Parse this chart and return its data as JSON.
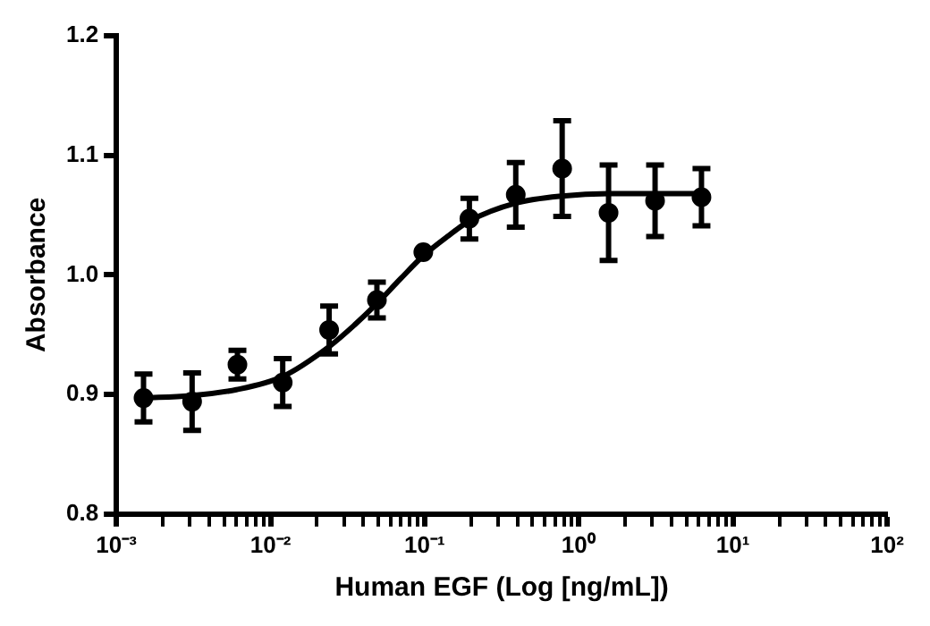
{
  "chart_data": {
    "type": "scatter",
    "xlabel": "Human EGF (Log [ng/mL])",
    "ylabel": "Absorbance",
    "log": "x",
    "grid": false,
    "legend": false,
    "marker": "circle",
    "xlim": [
      0.001,
      100
    ],
    "xticks": [
      {
        "value": 0.001,
        "label": "10⁻³"
      },
      {
        "value": 0.002,
        "label": null
      },
      {
        "value": 0.003,
        "label": null
      },
      {
        "value": 0.004,
        "label": null
      },
      {
        "value": 0.005,
        "label": null
      },
      {
        "value": 0.006,
        "label": null
      },
      {
        "value": 0.007,
        "label": null
      },
      {
        "value": 0.008,
        "label": null
      },
      {
        "value": 0.009,
        "label": null
      },
      {
        "value": 0.01,
        "label": "10⁻²"
      },
      {
        "value": 0.02,
        "label": null
      },
      {
        "value": 0.03,
        "label": null
      },
      {
        "value": 0.04,
        "label": null
      },
      {
        "value": 0.05,
        "label": null
      },
      {
        "value": 0.06,
        "label": null
      },
      {
        "value": 0.07,
        "label": null
      },
      {
        "value": 0.08,
        "label": null
      },
      {
        "value": 0.09,
        "label": null
      },
      {
        "value": 0.1,
        "label": "10⁻¹"
      },
      {
        "value": 0.2,
        "label": null
      },
      {
        "value": 0.3,
        "label": null
      },
      {
        "value": 0.4,
        "label": null
      },
      {
        "value": 0.5,
        "label": null
      },
      {
        "value": 0.6,
        "label": null
      },
      {
        "value": 0.7,
        "label": null
      },
      {
        "value": 0.8,
        "label": null
      },
      {
        "value": 0.9,
        "label": null
      },
      {
        "value": 1,
        "label": "10⁰"
      },
      {
        "value": 2,
        "label": null
      },
      {
        "value": 3,
        "label": null
      },
      {
        "value": 4,
        "label": null
      },
      {
        "value": 5,
        "label": null
      },
      {
        "value": 6,
        "label": null
      },
      {
        "value": 7,
        "label": null
      },
      {
        "value": 8,
        "label": null
      },
      {
        "value": 9,
        "label": null
      },
      {
        "value": 10,
        "label": "10¹"
      },
      {
        "value": 20,
        "label": null
      },
      {
        "value": 30,
        "label": null
      },
      {
        "value": 40,
        "label": null
      },
      {
        "value": 50,
        "label": null
      },
      {
        "value": 60,
        "label": null
      },
      {
        "value": 70,
        "label": null
      },
      {
        "value": 80,
        "label": null
      },
      {
        "value": 90,
        "label": null
      },
      {
        "value": 100,
        "label": "10²"
      }
    ],
    "ylim": [
      0.8,
      1.2
    ],
    "yticks": [
      0.8,
      0.9,
      {
        "value": 1,
        "label": "1.0"
      },
      1.1,
      1.2
    ],
    "series": [
      {
        "type": "scatter",
        "color": "#000000",
        "x": [
          0.0015,
          0.0031,
          0.0061,
          0.012,
          0.024,
          0.049,
          0.098,
          0.195,
          0.39,
          0.78,
          1.56,
          3.125,
          6.25
        ],
        "values": [
          0.897,
          0.894,
          0.925,
          0.91,
          0.954,
          0.979,
          1.019,
          1.047,
          1.067,
          1.089,
          1.052,
          1.062,
          1.065
        ],
        "errors": [
          0.02,
          0.024,
          0.012,
          0.02,
          0.02,
          0.015,
          null,
          0.017,
          0.027,
          0.04,
          0.04,
          0.03,
          0.024
        ]
      },
      {
        "type": "line",
        "color": "#000000",
        "marker": "none",
        "x": [
          0.0015,
          0.003,
          0.006,
          0.012,
          0.024,
          0.035,
          0.049,
          0.07,
          0.098,
          0.14,
          0.195,
          0.39,
          0.78,
          1.56,
          3.125,
          6.25
        ],
        "values": [
          0.897,
          0.899,
          0.904,
          0.915,
          0.94,
          0.958,
          0.976,
          0.997,
          1.016,
          1.032,
          1.045,
          1.06,
          1.066,
          1.068,
          1.068,
          1.068
        ]
      }
    ]
  }
}
